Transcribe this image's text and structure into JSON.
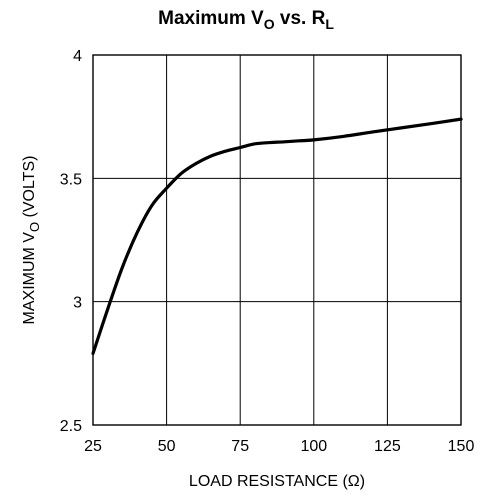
{
  "chart_data": {
    "type": "line",
    "title": {
      "main": "Maximum V",
      "main_sub": "O",
      "mid": " vs. R",
      "mid_sub": "L"
    },
    "xlabel": "LOAD RESISTANCE (Ω)",
    "ylabel": {
      "main": "MAXIMUM V",
      "sub": "O",
      "tail": " (VOLTS)"
    },
    "xlim": [
      25,
      150
    ],
    "ylim": [
      2.5,
      4
    ],
    "x_ticks": [
      25,
      50,
      75,
      100,
      125,
      150
    ],
    "x_tick_labels": [
      "25",
      "50",
      "75",
      "100",
      "125",
      "150"
    ],
    "y_ticks": [
      2.5,
      3,
      3.5,
      4
    ],
    "y_tick_labels": [
      "2.5",
      "3",
      "3.5",
      "4"
    ],
    "grid": true,
    "series": [
      {
        "x": [
          25,
          30,
          35,
          40,
          45,
          50,
          55,
          60,
          65,
          70,
          75,
          80,
          85,
          90,
          95,
          100,
          110,
          120,
          130,
          140,
          150
        ],
        "y": [
          2.79,
          2.97,
          3.14,
          3.28,
          3.39,
          3.46,
          3.52,
          3.56,
          3.59,
          3.61,
          3.625,
          3.64,
          3.645,
          3.648,
          3.652,
          3.656,
          3.67,
          3.688,
          3.705,
          3.722,
          3.74
        ],
        "color": "#000000"
      }
    ]
  }
}
